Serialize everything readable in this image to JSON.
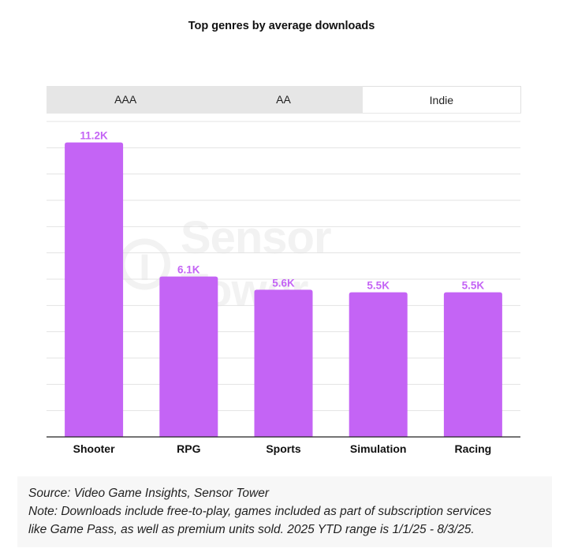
{
  "chart_data": {
    "type": "bar",
    "title": "Top genres by average downloads",
    "categories": [
      "Shooter",
      "RPG",
      "Sports",
      "Simulation",
      "Racing"
    ],
    "values": [
      11.2,
      6.1,
      5.6,
      5.5,
      5.5
    ],
    "data_labels": [
      "11.2K",
      "6.1K",
      "5.6K",
      "5.5K",
      "5.5K"
    ],
    "unit": "K downloads",
    "ylim": [
      0,
      12
    ],
    "grid": true,
    "xlabel": "",
    "ylabel": ""
  },
  "tabs": [
    {
      "label": "AAA",
      "active": false
    },
    {
      "label": "AA",
      "active": false
    },
    {
      "label": "Indie",
      "active": true
    }
  ],
  "watermark": "Sensor Tower",
  "notes": {
    "source": "Source: Video Game Insights, Sensor Tower",
    "line1": "Note: Downloads include free-to-play, games included as part of subscription services",
    "line2": "like Game Pass, as well as premium units sold. 2025 YTD range is 1/1/25 - 8/3/25."
  },
  "colors": {
    "bar": "#c464f5",
    "label": "#c464f5",
    "grid": "#e3e3e3",
    "axis": "#222222"
  }
}
